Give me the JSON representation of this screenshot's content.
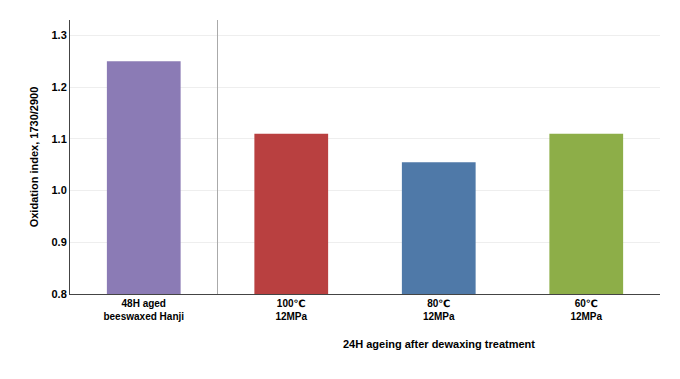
{
  "chart_data": {
    "type": "bar",
    "categories": [
      "48H aged\nbeeswaxed Hanji",
      "100℃\n12MPa",
      "80℃\n12MPa",
      "60℃\n12MPa"
    ],
    "values": [
      1.25,
      1.11,
      1.055,
      1.11
    ],
    "colors": [
      "#8B7BB5",
      "#B94040",
      "#4F79A8",
      "#8DAE48"
    ],
    "ylabel": "Oxidation index, 1730/2900",
    "xlabel": "24H ageing after dewaxing treatment",
    "ylim": [
      0.8,
      1.33
    ],
    "yticks": [
      0.8,
      0.9,
      {
        "value": 1.0,
        "label": "1.0"
      },
      1.1,
      1.2,
      1.3
    ],
    "grid": true
  }
}
